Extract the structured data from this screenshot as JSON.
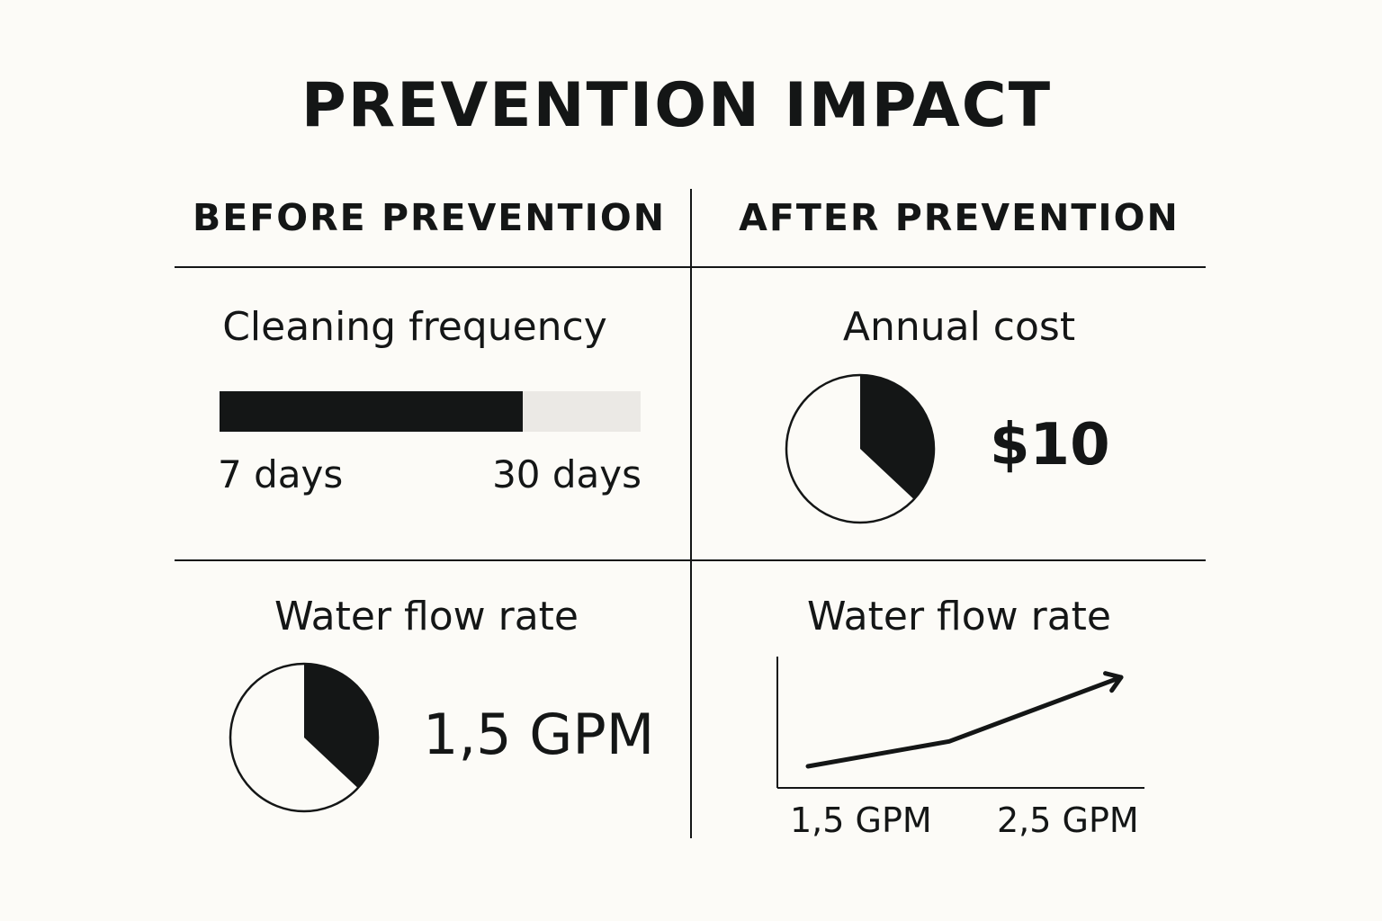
{
  "title": "PREVENTION IMPACT",
  "columns": {
    "before": "BEFORE PREVENTION",
    "after": "AFTER PREVENTION"
  },
  "colors": {
    "background": "#fcfbf7",
    "ink": "#141616",
    "track": "#ebe9e5"
  },
  "before": {
    "cleaning": {
      "label": "Cleaning frequency",
      "min_label": "7 days",
      "max_label": "30 days",
      "fill_percent": 72
    },
    "flow": {
      "label": "Water flow rate",
      "value": "1,5 GPM",
      "pie_fraction": 0.37
    }
  },
  "after": {
    "cost": {
      "label": "Annual cost",
      "value": "$10",
      "pie_fraction": 0.37
    },
    "flow": {
      "label": "Water flow rate",
      "x_start": "1,5 GPM",
      "x_end": "2,5 GPM"
    }
  },
  "chart_data": [
    {
      "type": "bar",
      "title": "Cleaning frequency",
      "tick_labels": [
        "7 days",
        "30 days"
      ],
      "fill_percent": 72
    },
    {
      "type": "pie",
      "title": "Annual cost",
      "slices": [
        0.37,
        0.63
      ],
      "annotation": "$10"
    },
    {
      "type": "pie",
      "title": "Water flow rate",
      "slices": [
        0.37,
        0.63
      ],
      "annotation": "1,5 GPM"
    },
    {
      "type": "line",
      "title": "Water flow rate",
      "tick_labels": [
        "1,5 GPM",
        "2,5 GPM"
      ],
      "values": [
        0,
        0.28,
        1
      ],
      "arrow_end": true
    }
  ]
}
